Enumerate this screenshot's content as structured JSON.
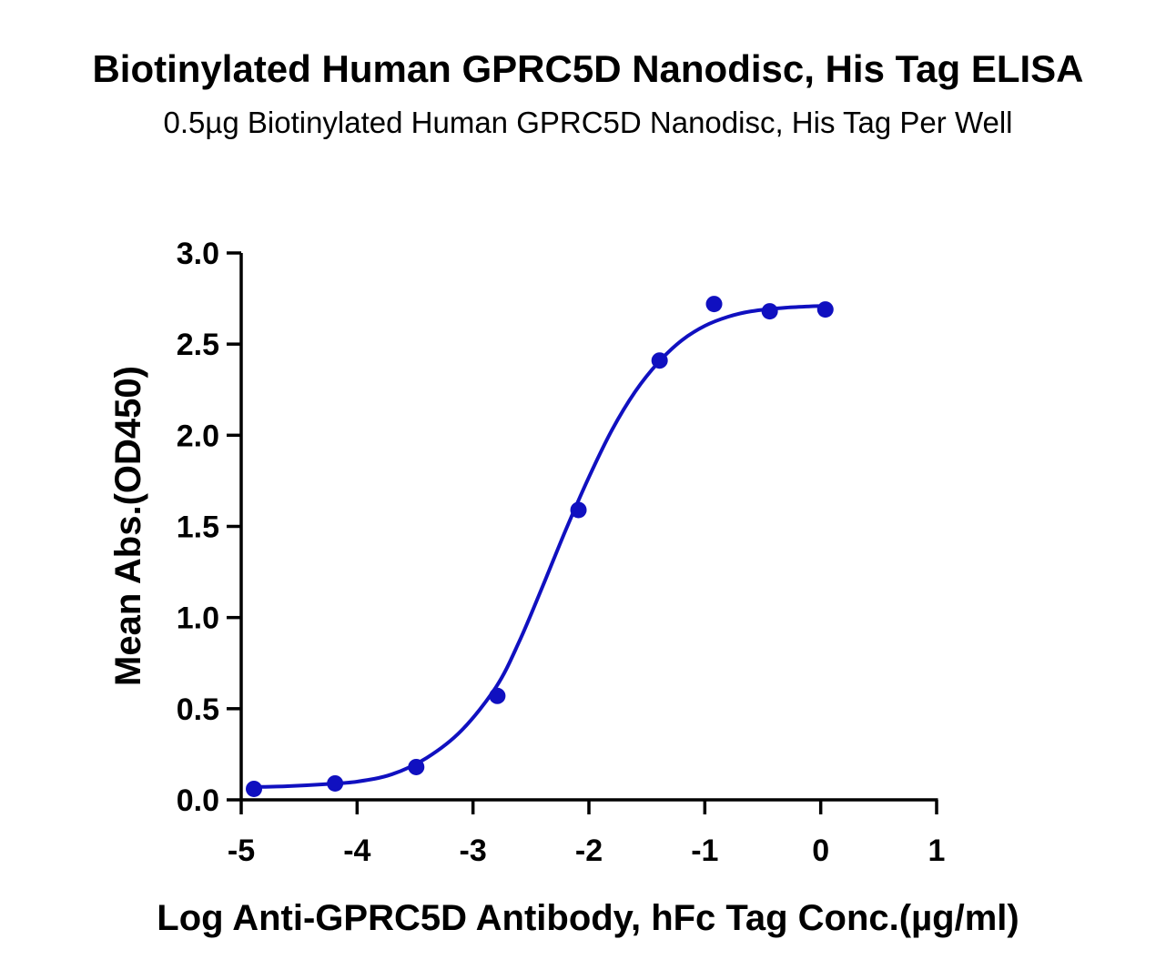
{
  "chart_data": {
    "type": "scatter",
    "title": "Biotinylated Human GPRC5D Nanodisc, His Tag ELISA",
    "subtitle": "0.5µg Biotinylated Human GPRC5D Nanodisc, His Tag Per Well",
    "xlabel": "Log Anti-GPRC5D Antibody, hFc Tag Conc.(µg/ml)",
    "ylabel": "Mean Abs.(OD450)",
    "xlim": [
      -5,
      1
    ],
    "ylim": [
      0,
      3.0
    ],
    "x_ticks": [
      "-5",
      "-4",
      "-3",
      "-2",
      "-1",
      "0",
      "1"
    ],
    "y_ticks": [
      "0.0",
      "0.5",
      "1.0",
      "1.5",
      "2.0",
      "2.5",
      "3.0"
    ],
    "grid": false,
    "series": [
      {
        "color": "#1010c0",
        "points": [
          {
            "x": -4.89,
            "y": 0.06
          },
          {
            "x": -4.19,
            "y": 0.09
          },
          {
            "x": -3.49,
            "y": 0.18
          },
          {
            "x": -2.79,
            "y": 0.57
          },
          {
            "x": -2.09,
            "y": 1.59
          },
          {
            "x": -1.39,
            "y": 2.41
          },
          {
            "x": -0.92,
            "y": 2.72
          },
          {
            "x": -0.44,
            "y": 2.68
          },
          {
            "x": 0.04,
            "y": 2.69
          }
        ],
        "fit_curve": [
          {
            "x": -4.89,
            "y": 0.07
          },
          {
            "x": -4.6,
            "y": 0.075
          },
          {
            "x": -4.3,
            "y": 0.085
          },
          {
            "x": -4.0,
            "y": 0.1
          },
          {
            "x": -3.7,
            "y": 0.14
          },
          {
            "x": -3.4,
            "y": 0.23
          },
          {
            "x": -3.1,
            "y": 0.38
          },
          {
            "x": -2.8,
            "y": 0.62
          },
          {
            "x": -2.6,
            "y": 0.87
          },
          {
            "x": -2.4,
            "y": 1.17
          },
          {
            "x": -2.2,
            "y": 1.48
          },
          {
            "x": -2.0,
            "y": 1.77
          },
          {
            "x": -1.8,
            "y": 2.03
          },
          {
            "x": -1.6,
            "y": 2.24
          },
          {
            "x": -1.4,
            "y": 2.4
          },
          {
            "x": -1.2,
            "y": 2.52
          },
          {
            "x": -1.0,
            "y": 2.6
          },
          {
            "x": -0.8,
            "y": 2.65
          },
          {
            "x": -0.6,
            "y": 2.68
          },
          {
            "x": -0.3,
            "y": 2.7
          },
          {
            "x": 0.04,
            "y": 2.71
          }
        ]
      }
    ]
  }
}
